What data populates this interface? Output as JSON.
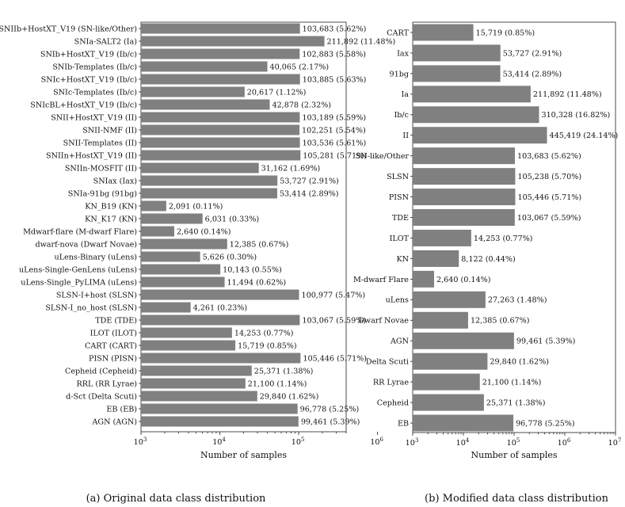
{
  "chart_data": [
    {
      "type": "bar",
      "orientation": "horizontal",
      "x_scale": "log",
      "xlim": [
        1000,
        400000
      ],
      "xlabel": "Number of samples",
      "x_ticks": [
        {
          "value": 1000,
          "base": "10",
          "exp": "3"
        },
        {
          "value": 10000,
          "base": "10",
          "exp": "4"
        },
        {
          "value": 100000,
          "base": "10",
          "exp": "5"
        },
        {
          "value": 1000000,
          "base": "10",
          "exp": "6"
        }
      ],
      "caption": "(a) Original data class distribution",
      "categories": [
        "SNIIb+HostXT_V19 (SN-like/Other)",
        "SNIa-SALT2 (Ia)",
        "SNIb+HostXT_V19 (Ib/c)",
        "SNIb-Templates (Ib/c)",
        "SNIc+HostXT_V19 (Ib/c)",
        "SNIc-Templates (Ib/c)",
        "SNIcBL+HostXT_V19 (Ib/c)",
        "SNII+HostXT_V19 (II)",
        "SNII-NMF (II)",
        "SNII-Templates (II)",
        "SNIIn+HostXT_V19 (II)",
        "SNIIn-MOSFIT (II)",
        "SNIax (Iax)",
        "SNIa-91bg (91bg)",
        "KN_B19 (KN)",
        "KN_K17 (KN)",
        "Mdwarf-flare (M-dwarf Flare)",
        "dwarf-nova (Dwarf Novae)",
        "uLens-Binary (uLens)",
        "uLens-Single-GenLens (uLens)",
        "uLens-Single_PyLIMA (uLens)",
        "SLSN-I+host (SLSN)",
        "SLSN-I_no_host (SLSN)",
        "TDE (TDE)",
        "ILOT (ILOT)",
        "CART (CART)",
        "PISN (PISN)",
        "Cepheid (Cepheid)",
        "RRL (RR Lyrae)",
        "d-Sct (Delta Scuti)",
        "EB (EB)",
        "AGN (AGN)"
      ],
      "values": [
        103683,
        211892,
        102883,
        40065,
        103885,
        20617,
        42878,
        103189,
        102251,
        103536,
        105281,
        31162,
        53727,
        53414,
        2091,
        6031,
        2640,
        12385,
        5626,
        10143,
        11494,
        100977,
        4261,
        103067,
        14253,
        15719,
        105446,
        25371,
        21100,
        29840,
        96778,
        99461
      ],
      "value_labels": [
        "103,683 (5.62%)",
        "211,892 (11.48%)",
        "102,883 (5.58%)",
        "40,065 (2.17%)",
        "103,885 (5.63%)",
        "20,617 (1.12%)",
        "42,878 (2.32%)",
        "103,189 (5.59%)",
        "102,251 (5.54%)",
        "103,536 (5.61%)",
        "105,281 (5.71%)",
        "31,162 (1.69%)",
        "53,727 (2.91%)",
        "53,414 (2.89%)",
        "2,091 (0.11%)",
        "6,031 (0.33%)",
        "2,640 (0.14%)",
        "12,385 (0.67%)",
        "5,626 (0.30%)",
        "10,143 (0.55%)",
        "11,494 (0.62%)",
        "100,977 (5.47%)",
        "4,261 (0.23%)",
        "103,067 (5.59%)",
        "14,253 (0.77%)",
        "15,719 (0.85%)",
        "105,446 (5.71%)",
        "25,371 (1.38%)",
        "21,100 (1.14%)",
        "29,840 (1.62%)",
        "96,778 (5.25%)",
        "99,461 (5.39%)"
      ],
      "bar_color": "#808080"
    },
    {
      "type": "bar",
      "orientation": "horizontal",
      "x_scale": "log",
      "xlim": [
        1000,
        10000000
      ],
      "xlabel": "Number of samples",
      "x_ticks": [
        {
          "value": 1000,
          "base": "10",
          "exp": "3"
        },
        {
          "value": 10000,
          "base": "10",
          "exp": "4"
        },
        {
          "value": 100000,
          "base": "10",
          "exp": "5"
        },
        {
          "value": 1000000,
          "base": "10",
          "exp": "6"
        },
        {
          "value": 10000000,
          "base": "10",
          "exp": "7"
        }
      ],
      "caption": "(b) Modified data class distribution",
      "categories": [
        "CART",
        "Iax",
        "91bg",
        "Ia",
        "Ib/c",
        "II",
        "SN-like/Other",
        "SLSN",
        "PISN",
        "TDE",
        "ILOT",
        "KN",
        "M-dwarf Flare",
        "uLens",
        "Dwarf Novae",
        "AGN",
        "Delta Scuti",
        "RR Lyrae",
        "Cepheid",
        "EB"
      ],
      "values": [
        15719,
        53727,
        53414,
        211892,
        310328,
        445419,
        103683,
        105238,
        105446,
        103067,
        14253,
        8122,
        2640,
        27263,
        12385,
        99461,
        29840,
        21100,
        25371,
        96778
      ],
      "value_labels": [
        "15,719 (0.85%)",
        "53,727 (2.91%)",
        "53,414 (2.89%)",
        "211,892 (11.48%)",
        "310,328 (16.82%)",
        "445,419 (24.14%)",
        "103,683 (5.62%)",
        "105,238 (5.70%)",
        "105,446 (5.71%)",
        "103,067 (5.59%)",
        "14,253 (0.77%)",
        "8,122 (0.44%)",
        "2,640 (0.14%)",
        "27,263 (1.48%)",
        "12,385 (0.67%)",
        "99,461 (5.39%)",
        "29,840 (1.62%)",
        "21,100 (1.14%)",
        "25,371 (1.38%)",
        "96,778 (5.25%)"
      ],
      "bar_color": "#808080"
    }
  ]
}
